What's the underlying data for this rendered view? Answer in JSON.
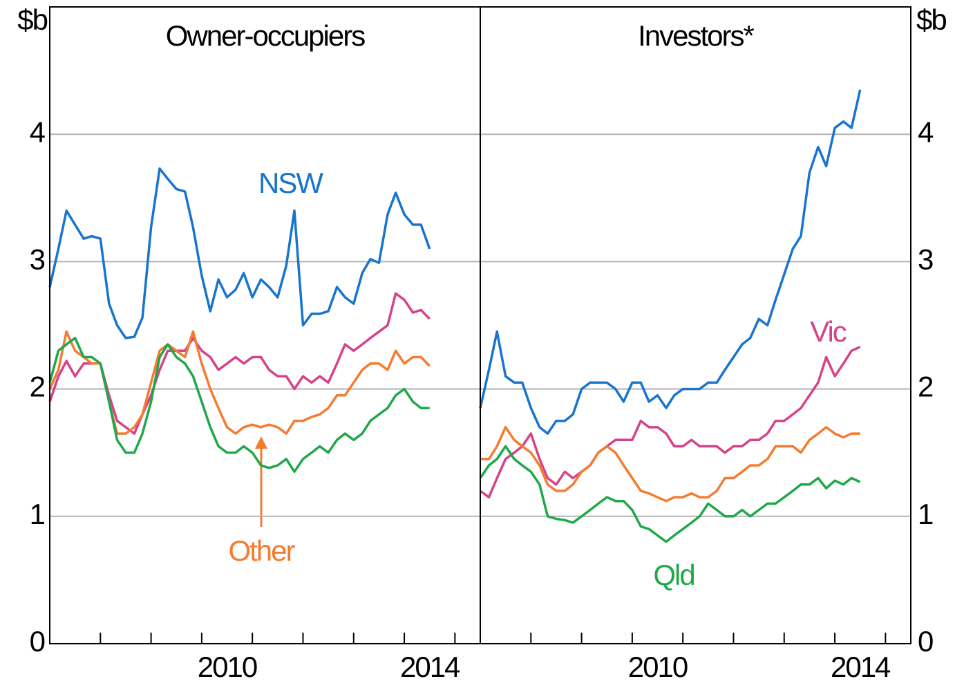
{
  "chart_data": [
    {
      "type": "line",
      "subtitle": "Owner-occupiers",
      "ylabel": "$b",
      "yaxis_side": "left",
      "xlim": [
        2007,
        2015.5
      ],
      "xticks": [
        2007,
        2008,
        2009,
        2010,
        2011,
        2012,
        2013,
        2014,
        2015
      ],
      "xlabels": [
        2010,
        2014
      ],
      "ylim": [
        0,
        5
      ],
      "yticks": [
        0,
        1,
        2,
        3,
        4
      ],
      "grid": true,
      "x": [
        2007,
        2007.17,
        2007.33,
        2007.5,
        2007.67,
        2007.83,
        2008,
        2008.17,
        2008.33,
        2008.5,
        2008.67,
        2008.83,
        2009,
        2009.17,
        2009.33,
        2009.5,
        2009.67,
        2009.83,
        2010,
        2010.17,
        2010.33,
        2010.5,
        2010.67,
        2010.83,
        2011,
        2011.17,
        2011.33,
        2011.5,
        2011.67,
        2011.83,
        2012,
        2012.17,
        2012.33,
        2012.5,
        2012.67,
        2012.83,
        2013,
        2013.17,
        2013.33,
        2013.5,
        2013.67,
        2013.83,
        2014,
        2014.17,
        2014.33,
        2014.5
      ],
      "series": [
        {
          "name": "NSW",
          "color": "#1874cd",
          "values": [
            2.8,
            3.1,
            3.4,
            3.29,
            3.18,
            3.2,
            3.18,
            2.67,
            2.5,
            2.4,
            2.41,
            2.56,
            3.27,
            3.73,
            3.65,
            3.57,
            3.55,
            3.27,
            2.89,
            2.61,
            2.86,
            2.72,
            2.78,
            2.91,
            2.72,
            2.86,
            2.8,
            2.72,
            2.97,
            3.4,
            2.5,
            2.59,
            2.59,
            2.61,
            2.8,
            2.72,
            2.67,
            2.91,
            3.02,
            2.99,
            3.37,
            3.54,
            3.37,
            3.29,
            3.29,
            3.1
          ]
        },
        {
          "color": "#d6428a",
          "values": [
            1.9,
            2.1,
            2.22,
            2.1,
            2.2,
            2.2,
            2.2,
            1.95,
            1.75,
            1.7,
            1.65,
            1.8,
            1.95,
            2.15,
            2.3,
            2.3,
            2.3,
            2.4,
            2.3,
            2.25,
            2.15,
            2.2,
            2.25,
            2.2,
            2.25,
            2.25,
            2.15,
            2.1,
            2.1,
            2.0,
            2.1,
            2.05,
            2.1,
            2.05,
            2.2,
            2.35,
            2.3,
            2.35,
            2.4,
            2.45,
            2.5,
            2.75,
            2.7,
            2.6,
            2.62,
            2.55
          ]
        },
        {
          "name": "Other",
          "color": "#f47b30",
          "values": [
            2.0,
            2.15,
            2.45,
            2.3,
            2.25,
            2.2,
            2.2,
            1.9,
            1.65,
            1.65,
            1.7,
            1.8,
            2.05,
            2.3,
            2.35,
            2.3,
            2.25,
            2.45,
            2.2,
            2.0,
            1.85,
            1.7,
            1.65,
            1.7,
            1.72,
            1.7,
            1.72,
            1.7,
            1.65,
            1.75,
            1.75,
            1.78,
            1.8,
            1.85,
            1.95,
            1.95,
            2.05,
            2.15,
            2.2,
            2.2,
            2.15,
            2.3,
            2.2,
            2.25,
            2.25,
            2.18
          ]
        },
        {
          "color": "#1fa84a",
          "values": [
            2.05,
            2.3,
            2.35,
            2.4,
            2.25,
            2.25,
            2.2,
            1.9,
            1.6,
            1.5,
            1.5,
            1.65,
            1.9,
            2.25,
            2.35,
            2.25,
            2.2,
            2.1,
            1.9,
            1.7,
            1.55,
            1.5,
            1.5,
            1.55,
            1.5,
            1.4,
            1.38,
            1.4,
            1.45,
            1.35,
            1.45,
            1.5,
            1.55,
            1.5,
            1.6,
            1.65,
            1.6,
            1.65,
            1.75,
            1.8,
            1.85,
            1.95,
            2.0,
            1.9,
            1.85,
            1.85
          ]
        }
      ]
    },
    {
      "type": "line",
      "subtitle": "Investors*",
      "ylabel": "$b",
      "yaxis_side": "right",
      "xlim": [
        2007,
        2015.5
      ],
      "xticks": [
        2007,
        2008,
        2009,
        2010,
        2011,
        2012,
        2013,
        2014,
        2015
      ],
      "xlabels": [
        2010,
        2014
      ],
      "ylim": [
        0,
        5
      ],
      "yticks": [
        0,
        1,
        2,
        3,
        4
      ],
      "grid": true,
      "x": [
        2007,
        2007.17,
        2007.33,
        2007.5,
        2007.67,
        2007.83,
        2008,
        2008.17,
        2008.33,
        2008.5,
        2008.67,
        2008.83,
        2009,
        2009.17,
        2009.33,
        2009.5,
        2009.67,
        2009.83,
        2010,
        2010.17,
        2010.33,
        2010.5,
        2010.67,
        2010.83,
        2011,
        2011.17,
        2011.33,
        2011.5,
        2011.67,
        2011.83,
        2012,
        2012.17,
        2012.33,
        2012.5,
        2012.67,
        2012.83,
        2013,
        2013.17,
        2013.33,
        2013.5,
        2013.67,
        2013.83,
        2014,
        2014.17,
        2014.33,
        2014.5
      ],
      "series": [
        {
          "color": "#1874cd",
          "values": [
            1.85,
            2.15,
            2.45,
            2.1,
            2.05,
            2.05,
            1.85,
            1.7,
            1.65,
            1.75,
            1.75,
            1.8,
            2.0,
            2.05,
            2.05,
            2.05,
            2.0,
            1.9,
            2.05,
            2.05,
            1.9,
            1.95,
            1.85,
            1.95,
            2.0,
            2.0,
            2.0,
            2.05,
            2.05,
            2.15,
            2.25,
            2.35,
            2.4,
            2.55,
            2.5,
            2.7,
            2.9,
            3.1,
            3.2,
            3.7,
            3.9,
            3.75,
            4.05,
            4.1,
            4.05,
            4.35
          ]
        },
        {
          "name": "Vic",
          "color": "#d6428a",
          "values": [
            1.2,
            1.15,
            1.3,
            1.45,
            1.5,
            1.55,
            1.65,
            1.45,
            1.3,
            1.25,
            1.35,
            1.3,
            1.35,
            1.4,
            1.5,
            1.55,
            1.6,
            1.6,
            1.6,
            1.75,
            1.7,
            1.7,
            1.65,
            1.55,
            1.55,
            1.6,
            1.55,
            1.55,
            1.55,
            1.5,
            1.55,
            1.55,
            1.6,
            1.6,
            1.65,
            1.75,
            1.75,
            1.8,
            1.85,
            1.95,
            2.05,
            2.25,
            2.1,
            2.2,
            2.3,
            2.33
          ]
        },
        {
          "color": "#f47b30",
          "values": [
            1.45,
            1.45,
            1.55,
            1.7,
            1.6,
            1.55,
            1.5,
            1.4,
            1.25,
            1.2,
            1.2,
            1.25,
            1.35,
            1.4,
            1.5,
            1.55,
            1.5,
            1.4,
            1.3,
            1.2,
            1.18,
            1.15,
            1.12,
            1.15,
            1.15,
            1.18,
            1.15,
            1.15,
            1.2,
            1.3,
            1.3,
            1.35,
            1.4,
            1.4,
            1.45,
            1.55,
            1.55,
            1.55,
            1.5,
            1.6,
            1.65,
            1.7,
            1.65,
            1.62,
            1.65,
            1.65
          ]
        },
        {
          "name": "Qld",
          "color": "#1fa84a",
          "values": [
            1.3,
            1.4,
            1.45,
            1.55,
            1.45,
            1.4,
            1.35,
            1.25,
            1.0,
            0.98,
            0.97,
            0.95,
            1.0,
            1.05,
            1.1,
            1.15,
            1.12,
            1.12,
            1.05,
            0.92,
            0.9,
            0.85,
            0.8,
            0.85,
            0.9,
            0.95,
            1.0,
            1.1,
            1.05,
            1.0,
            1.0,
            1.05,
            1.0,
            1.05,
            1.1,
            1.1,
            1.15,
            1.2,
            1.25,
            1.25,
            1.3,
            1.22,
            1.28,
            1.25,
            1.3,
            1.27
          ]
        }
      ]
    }
  ]
}
